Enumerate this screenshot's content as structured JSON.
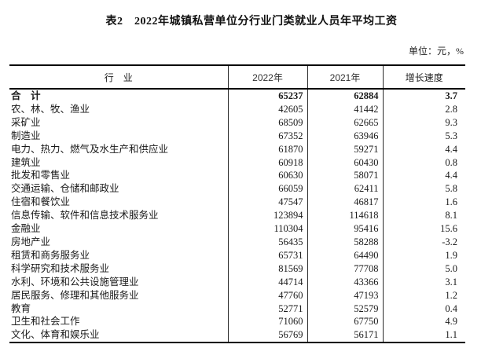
{
  "page": {
    "title": "表2　2022年城镇私营单位分行业门类就业人员年平均工资",
    "unit_note": "单位：元，%"
  },
  "table": {
    "headers": {
      "industry": "行　业",
      "y2022": "2022年",
      "y2021": "2021年",
      "growth": "增长速度"
    },
    "rows": [
      {
        "industry": "合　计",
        "y2022": "65237",
        "y2021": "62884",
        "growth": "3.7",
        "bold": true
      },
      {
        "industry": "农、林、牧、渔业",
        "y2022": "42605",
        "y2021": "41442",
        "growth": "2.8"
      },
      {
        "industry": "采矿业",
        "y2022": "68509",
        "y2021": "62665",
        "growth": "9.3"
      },
      {
        "industry": "制造业",
        "y2022": "67352",
        "y2021": "63946",
        "growth": "5.3"
      },
      {
        "industry": "电力、热力、燃气及水生产和供应业",
        "y2022": "61870",
        "y2021": "59271",
        "growth": "4.4"
      },
      {
        "industry": "建筑业",
        "y2022": "60918",
        "y2021": "60430",
        "growth": "0.8"
      },
      {
        "industry": "批发和零售业",
        "y2022": "60630",
        "y2021": "58071",
        "growth": "4.4"
      },
      {
        "industry": "交通运输、仓储和邮政业",
        "y2022": "66059",
        "y2021": "62411",
        "growth": "5.8"
      },
      {
        "industry": "住宿和餐饮业",
        "y2022": "47547",
        "y2021": "46817",
        "growth": "1.6"
      },
      {
        "industry": "信息传输、软件和信息技术服务业",
        "y2022": "123894",
        "y2021": "114618",
        "growth": "8.1"
      },
      {
        "industry": "金融业",
        "y2022": "110304",
        "y2021": "95416",
        "growth": "15.6"
      },
      {
        "industry": "房地产业",
        "y2022": "56435",
        "y2021": "58288",
        "growth": "-3.2"
      },
      {
        "industry": "租赁和商务服务业",
        "y2022": "65731",
        "y2021": "64490",
        "growth": "1.9"
      },
      {
        "industry": "科学研究和技术服务业",
        "y2022": "81569",
        "y2021": "77708",
        "growth": "5.0"
      },
      {
        "industry": "水利、环境和公共设施管理业",
        "y2022": "44714",
        "y2021": "43366",
        "growth": "3.1"
      },
      {
        "industry": "居民服务、修理和其他服务业",
        "y2022": "47760",
        "y2021": "47193",
        "growth": "1.2"
      },
      {
        "industry": "教育",
        "y2022": "52771",
        "y2021": "52579",
        "growth": "0.4"
      },
      {
        "industry": "卫生和社会工作",
        "y2022": "71060",
        "y2021": "67750",
        "growth": "4.9"
      },
      {
        "industry": "文化、体育和娱乐业",
        "y2022": "56769",
        "y2021": "56171",
        "growth": "1.1"
      }
    ]
  }
}
